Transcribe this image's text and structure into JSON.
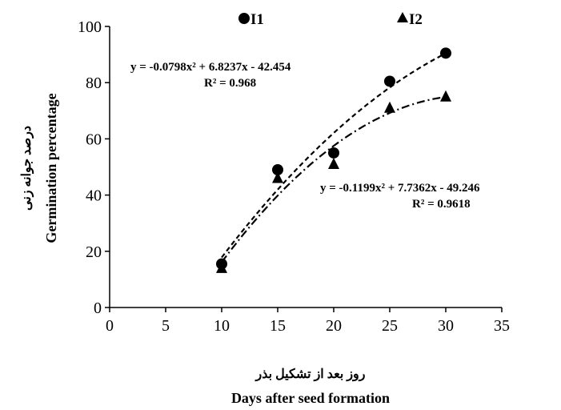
{
  "chart_data": {
    "type": "scatter",
    "xlabel_fa": "روز بعد از تشکیل بذر",
    "xlabel": "Days after seed formation",
    "ylabel_fa": "درصد جوانه زنی",
    "ylabel": "Germination percentage",
    "xlim": [
      0,
      35
    ],
    "ylim": [
      0,
      100
    ],
    "xticks": [
      "0",
      "5",
      "10",
      "15",
      "20",
      "25",
      "30",
      "35"
    ],
    "yticks": [
      "0",
      "20",
      "40",
      "60",
      "80",
      "100"
    ],
    "grid": false,
    "legend_position": "top",
    "series": [
      {
        "name": "I1",
        "marker": "circle",
        "x": [
          10,
          15,
          20,
          25,
          30
        ],
        "y": [
          15.5,
          49,
          55,
          80.5,
          90.5
        ],
        "trendline": {
          "style": "dashed",
          "coefficients": [
            -0.0798,
            6.8237,
            -42.454
          ],
          "equation": "y = -0.0798x² + 6.8237x - 42.454",
          "r2": "R² = 0.968"
        }
      },
      {
        "name": "I2",
        "marker": "triangle",
        "x": [
          10,
          15,
          20,
          25,
          30
        ],
        "y": [
          14,
          46,
          51,
          71,
          75
        ],
        "trendline": {
          "style": "dash-dot",
          "coefficients": [
            -0.1199,
            7.7362,
            -49.246
          ],
          "equation": "y = -0.1199x² + 7.7362x - 49.246",
          "r2": "R² = 0.9618"
        }
      }
    ]
  },
  "colors": {
    "ink": "#000000",
    "background": "#ffffff"
  }
}
